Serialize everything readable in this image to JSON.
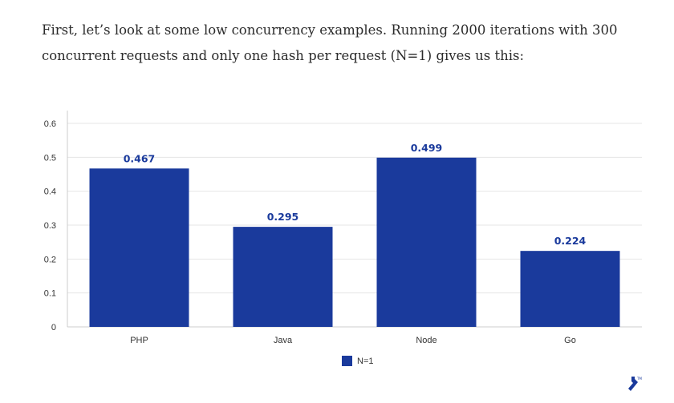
{
  "intro": {
    "text": "First, let’s look at some low concurrency examples. Running 2000 iterations with 300 concurrent requests and only one hash per request (N=1) gives us this:"
  },
  "colors": {
    "bar": "#1a3a9c",
    "grid": "#e6e6e6",
    "axis": "#cccccc",
    "logo": "#1a3a9c"
  },
  "icons": {
    "brand_logo": "toptal-logo-icon"
  },
  "chart_data": {
    "type": "bar",
    "categories": [
      "PHP",
      "Java",
      "Node",
      "Go"
    ],
    "series": [
      {
        "name": "N=1",
        "values": [
          0.467,
          0.295,
          0.499,
          0.224
        ]
      }
    ],
    "data_labels": [
      "0.467",
      "0.295",
      "0.499",
      "0.224"
    ],
    "y_ticks": [
      "0",
      "0.1",
      "0.2",
      "0.3",
      "0.4",
      "0.5",
      "0.6"
    ],
    "ylim": [
      0,
      0.6
    ],
    "grid": true,
    "legend": "bottom-center"
  }
}
